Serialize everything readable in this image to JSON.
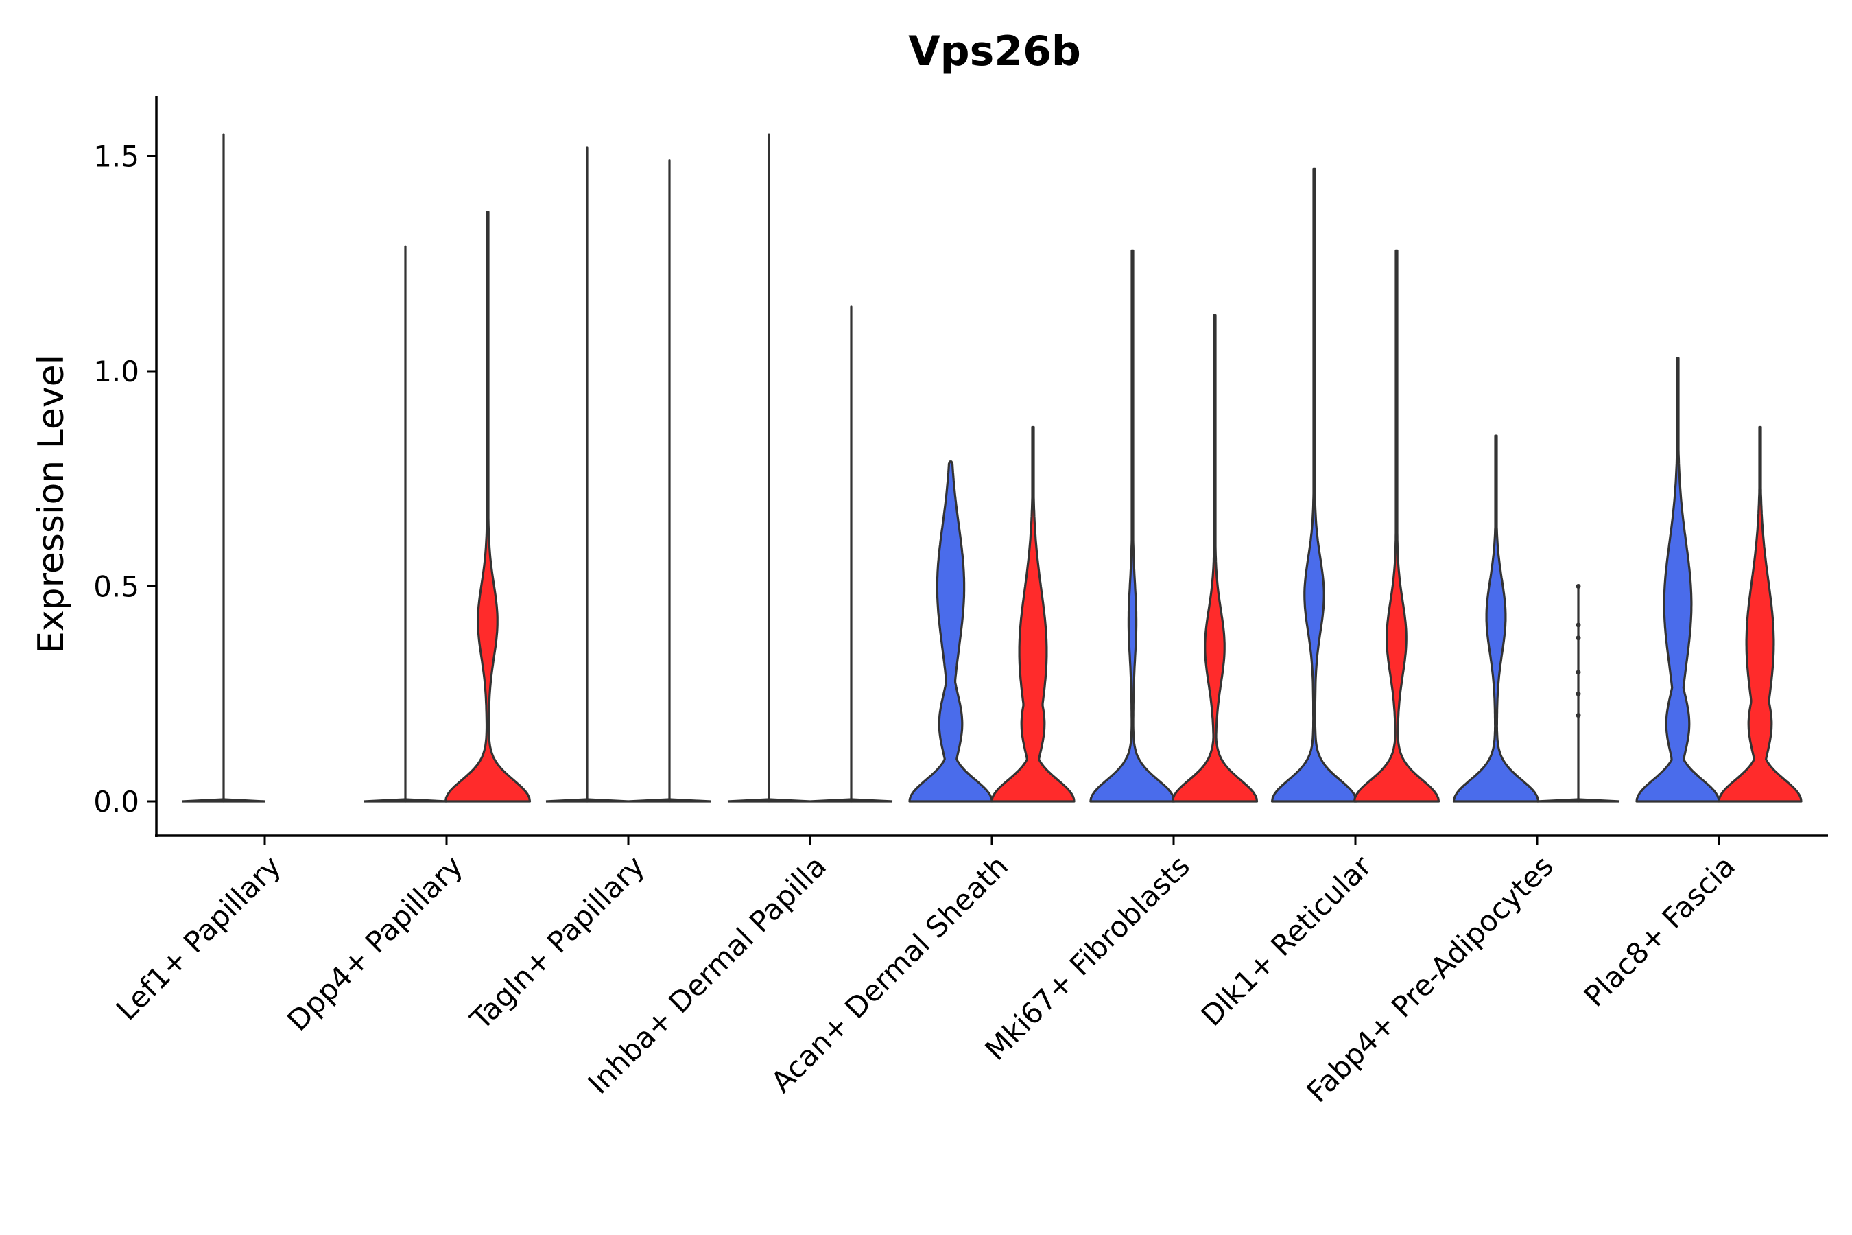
{
  "chart_data": {
    "type": "violin",
    "title": "Vps26b",
    "ylabel": "Expression Level",
    "xlabel": "",
    "ylim": [
      -0.08,
      1.64
    ],
    "yticks": [
      0.0,
      0.5,
      1.0,
      1.5
    ],
    "ytick_labels": [
      "0.0",
      "0.5",
      "1.0",
      "1.5"
    ],
    "grid": false,
    "legend": "none",
    "colors": {
      "group1": "#4A6CEB",
      "group2": "#FF2B2B",
      "outline": "#333333"
    },
    "categories": [
      "Lef1+ Papillary",
      "Dpp4+ Papillary",
      "Tagln+ Papillary",
      "Inhba+ Dermal Papilla",
      "Acan+ Dermal Sheath",
      "Mki67+ Fibroblasts",
      "Dlk1+ Reticular",
      "Fabp4+ Pre-Adipocytes",
      "Plac8+ Fascia"
    ],
    "series": [
      {
        "name": "group1",
        "color": "#4A6CEB",
        "values": [
          {
            "max": 1.55,
            "shape": "flat"
          },
          {
            "max": 1.29,
            "shape": "flat"
          },
          {
            "max": 1.52,
            "shape": "flat"
          },
          {
            "max": 1.55,
            "shape": "flat"
          },
          {
            "max": 0.79,
            "shape": "wide_top",
            "mode_upper": 0.5
          },
          {
            "max": 1.28,
            "shape": "spiky",
            "mode_upper": 0.42
          },
          {
            "max": 1.47,
            "shape": "bimodal",
            "mode_upper": 0.48
          },
          {
            "max": 0.85,
            "shape": "bimodal",
            "mode_upper": 0.43
          },
          {
            "max": 1.03,
            "shape": "wide_top",
            "mode_upper": 0.46
          }
        ]
      },
      {
        "name": "group2",
        "color": "#FF2B2B",
        "values": [
          {
            "max": 0.0,
            "shape": "none"
          },
          {
            "max": 1.37,
            "shape": "bimodal",
            "mode_upper": 0.42
          },
          {
            "max": 1.49,
            "shape": "flat"
          },
          {
            "max": 1.15,
            "shape": "flat"
          },
          {
            "max": 0.87,
            "shape": "wide_top",
            "mode_upper": 0.35
          },
          {
            "max": 1.13,
            "shape": "bimodal",
            "mode_upper": 0.36
          },
          {
            "max": 1.28,
            "shape": "bimodal",
            "mode_upper": 0.38
          },
          {
            "max": 0.5,
            "shape": "points",
            "points": [
              0.2,
              0.25,
              0.3,
              0.38,
              0.41,
              0.5
            ]
          },
          {
            "max": 0.87,
            "shape": "wide_top",
            "mode_upper": 0.37
          }
        ]
      }
    ]
  }
}
